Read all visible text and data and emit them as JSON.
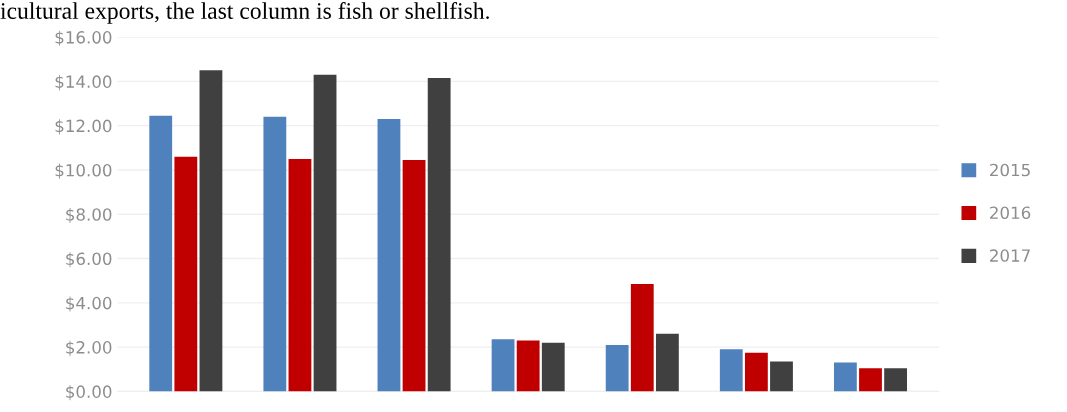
{
  "chart_data": {
    "type": "bar",
    "annotations": [
      "icultural exports, the last column is fish or shellfish."
    ],
    "categories": [
      null,
      null,
      null,
      null,
      null,
      null,
      null
    ],
    "series": [
      {
        "name": "2015",
        "color": "#4f81bd",
        "values": [
          12.45,
          12.4,
          12.3,
          2.35,
          2.1,
          1.9,
          1.3
        ]
      },
      {
        "name": "2016",
        "color": "#c00000",
        "values": [
          10.6,
          10.5,
          10.45,
          2.3,
          4.85,
          1.75,
          1.05
        ]
      },
      {
        "name": "2017",
        "color": "#404040",
        "values": [
          14.5,
          14.3,
          14.15,
          2.2,
          2.6,
          1.35,
          1.05
        ]
      }
    ],
    "ylim": [
      0,
      16
    ],
    "yticks": [
      {
        "value": 0,
        "label": "$0.00"
      },
      {
        "value": 2,
        "label": "$2.00"
      },
      {
        "value": 4,
        "label": "$4.00"
      },
      {
        "value": 6,
        "label": "$6.00"
      },
      {
        "value": 8,
        "label": "$8.00"
      },
      {
        "value": 10,
        "label": "$10.00"
      },
      {
        "value": 12,
        "label": "$12.00"
      },
      {
        "value": 14,
        "label": "$14.00"
      },
      {
        "value": 16,
        "label": "$16.00"
      }
    ],
    "grid": "y",
    "legend": "right"
  }
}
